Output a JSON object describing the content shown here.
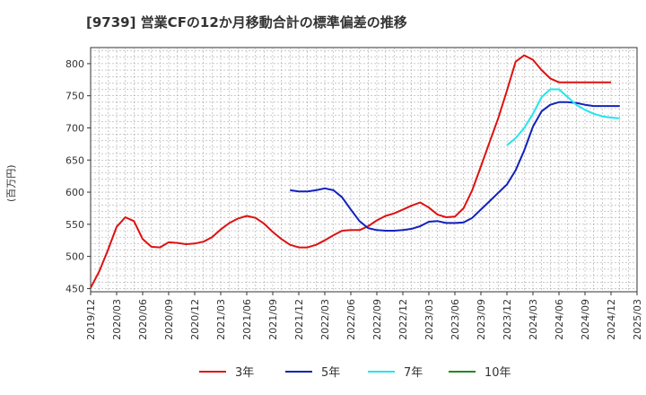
{
  "chart_data": {
    "type": "line",
    "title": "[9739]  営業CFの12か月移動合計の標準偏差の推移",
    "ylabel": "(百万円)",
    "ylim": [
      445,
      825
    ],
    "yticks": [
      450,
      500,
      550,
      600,
      650,
      700,
      750,
      800
    ],
    "grid": true,
    "legend_position": "bottom",
    "x_start": "2019-12",
    "x_end": "2025-03",
    "xtick_labels": [
      "2019/12",
      "2020/03",
      "2020/06",
      "2020/09",
      "2020/12",
      "2021/03",
      "2021/06",
      "2021/09",
      "2021/12",
      "2022/03",
      "2022/06",
      "2022/09",
      "2022/12",
      "2023/03",
      "2023/06",
      "2023/09",
      "2023/12",
      "2024/03",
      "2024/06",
      "2024/09",
      "2024/12",
      "2025/03"
    ],
    "series": [
      {
        "name": "3年",
        "color": "#dd1111",
        "start": "2019-12",
        "values": [
          451,
          477,
          510,
          546,
          561,
          555,
          527,
          515,
          514,
          522,
          521,
          519,
          520,
          523,
          530,
          542,
          552,
          559,
          563,
          560,
          551,
          538,
          527,
          518,
          514,
          514,
          518,
          525,
          533,
          540,
          541,
          541,
          547,
          556,
          563,
          567,
          573,
          579,
          584,
          576,
          565,
          561,
          562,
          575,
          603,
          640,
          678,
          715,
          758,
          803,
          813,
          806,
          790,
          777,
          771,
          771,
          771,
          771,
          771,
          771,
          771
        ]
      },
      {
        "name": "5年",
        "color": "#1122bb",
        "start": "2021-11",
        "values": [
          603,
          601,
          601,
          603,
          606,
          603,
          592,
          573,
          555,
          544,
          541,
          540,
          540,
          541,
          543,
          547,
          554,
          555,
          552,
          552,
          553,
          560,
          573,
          586,
          599,
          612,
          634,
          665,
          702,
          726,
          736,
          740,
          740,
          739,
          736,
          734,
          734,
          734,
          734
        ]
      },
      {
        "name": "7年",
        "color": "#22e5ee",
        "start": "2023-12",
        "values": [
          673,
          684,
          700,
          722,
          748,
          760,
          760,
          748,
          736,
          728,
          722,
          718,
          716,
          715
        ]
      },
      {
        "name": "10年",
        "color": "#228822",
        "start": "2019-12",
        "values": []
      }
    ]
  }
}
